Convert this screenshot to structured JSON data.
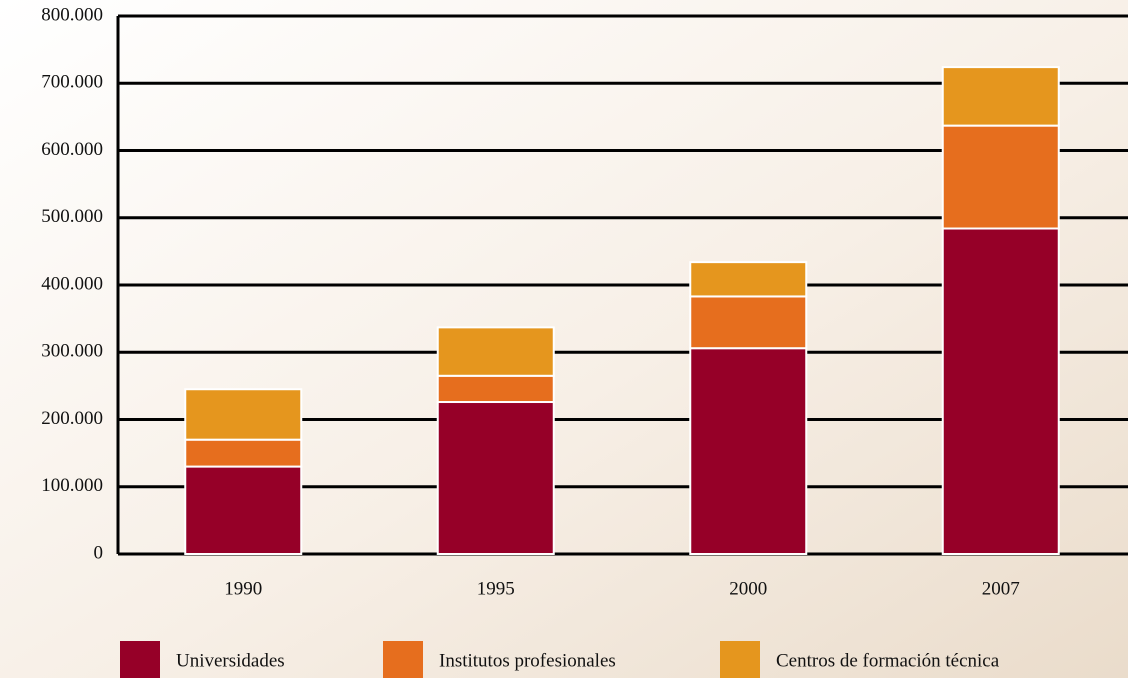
{
  "chart_data": {
    "type": "stacked_bar",
    "categories": [
      "1990",
      "1995",
      "2000",
      "2007"
    ],
    "series": [
      {
        "name": "Universidades",
        "color": "#960028",
        "values": [
          130000,
          226000,
          306000,
          484000
        ]
      },
      {
        "name": "Institutos profesionales",
        "color": "#e66e1e",
        "values": [
          40000,
          39000,
          77000,
          153000
        ]
      },
      {
        "name": "Centros de formación técnica",
        "color": "#e5961e",
        "values": [
          75000,
          72000,
          51000,
          87000
        ]
      }
    ],
    "ylim": [
      0,
      800000
    ],
    "yticks": [
      0,
      {
        "value": 100000,
        "label": "100.000"
      },
      {
        "value": 200000,
        "label": "200.000"
      },
      {
        "value": 300000,
        "label": "300.000"
      },
      {
        "value": 400000,
        "label": "400.000"
      },
      {
        "value": 500000,
        "label": "500.000"
      },
      {
        "value": 600000,
        "label": "600.000"
      },
      {
        "value": 700000,
        "label": "700.000"
      },
      {
        "value": 800000,
        "label": "800.000"
      }
    ],
    "grid": true,
    "legend": "bottom"
  }
}
